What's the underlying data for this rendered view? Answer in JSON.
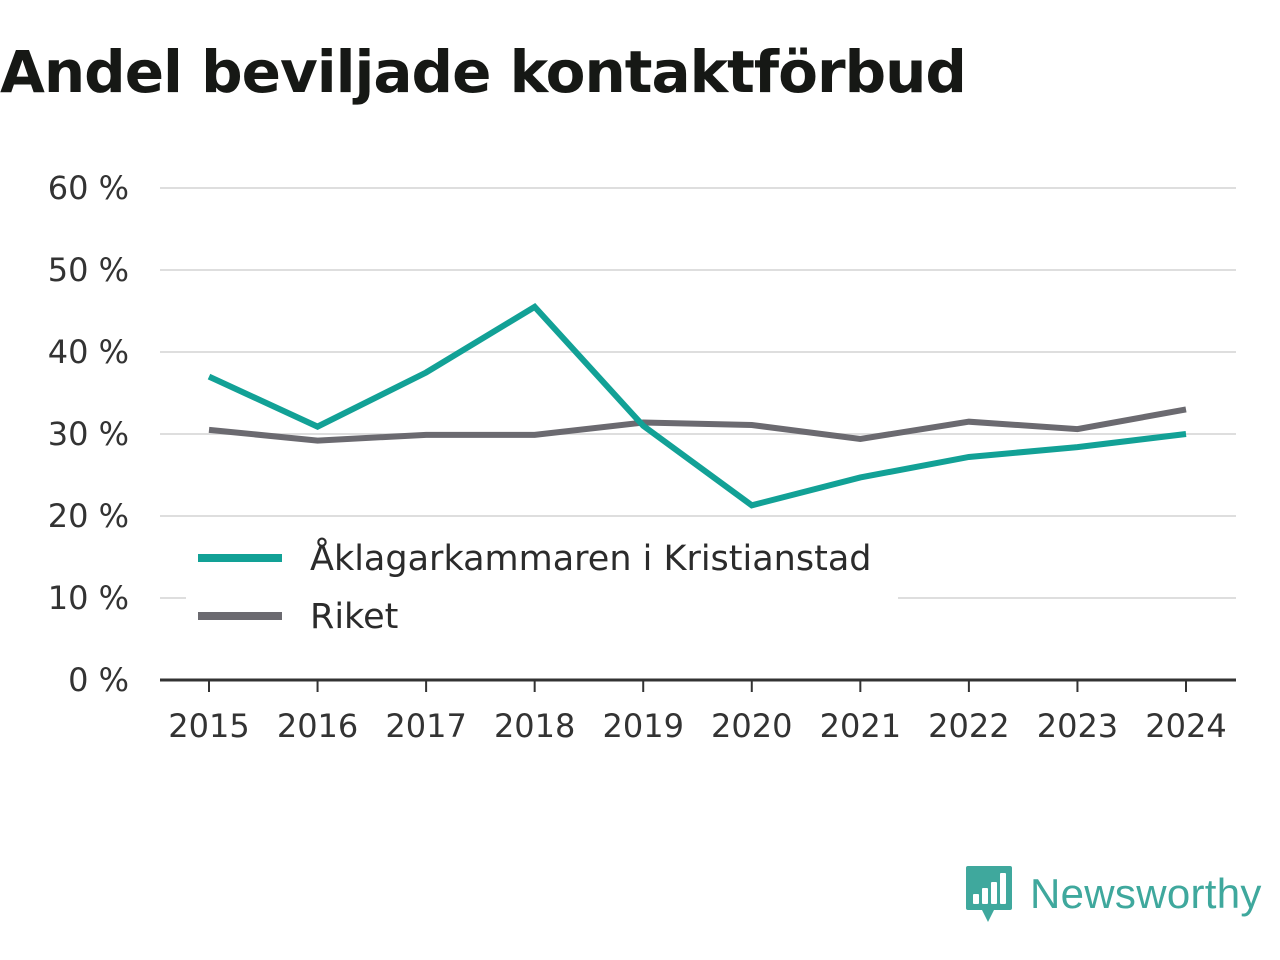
{
  "chart_data": {
    "type": "line",
    "title": "Andel beviljade kontaktförbud",
    "categories": [
      "2015",
      "2016",
      "2017",
      "2018",
      "2019",
      "2020",
      "2021",
      "2022",
      "2023",
      "2024"
    ],
    "y_ticks": [
      "0 %",
      "10 %",
      "20 %",
      "30 %",
      "40 %",
      "50 %",
      "60 %"
    ],
    "ylim": [
      0,
      60
    ],
    "grid": true,
    "legend_position": "bottom-left",
    "series": [
      {
        "name": "Åklagarkammaren i Kristianstad",
        "color": "#12a196",
        "values": [
          37.0,
          30.9,
          37.5,
          45.5,
          31.0,
          21.3,
          24.7,
          27.2,
          28.4,
          30.0
        ]
      },
      {
        "name": "Riket",
        "color": "#6b6a70",
        "values": [
          30.5,
          29.2,
          29.9,
          29.9,
          31.4,
          31.1,
          29.4,
          31.5,
          30.6,
          33.0
        ]
      }
    ]
  },
  "brand": {
    "name": "Newsworthy",
    "color": "#3fa89d"
  }
}
